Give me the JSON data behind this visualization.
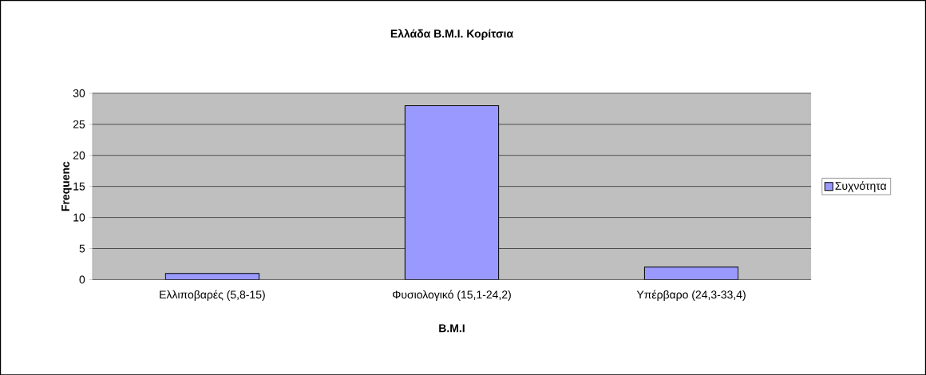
{
  "chart_data": {
    "type": "bar",
    "title": "Ελλάδα B.M.I. Κορίτσια",
    "xlabel": "B.M.I",
    "ylabel": "Frequenc",
    "categories": [
      "Ελλιποβαρές (5,8-15)",
      "Φυσιολογικό (15,1-24,2)",
      "Υπέρβαρο (24,3-33,4)"
    ],
    "series": [
      {
        "name": "Συχνότητα",
        "color": "#9999ff",
        "values": [
          1,
          28,
          2
        ]
      }
    ],
    "ylim": [
      0,
      30
    ],
    "yticks": [
      0,
      5,
      10,
      15,
      20,
      25,
      30
    ],
    "grid": "y",
    "legend": "right"
  }
}
